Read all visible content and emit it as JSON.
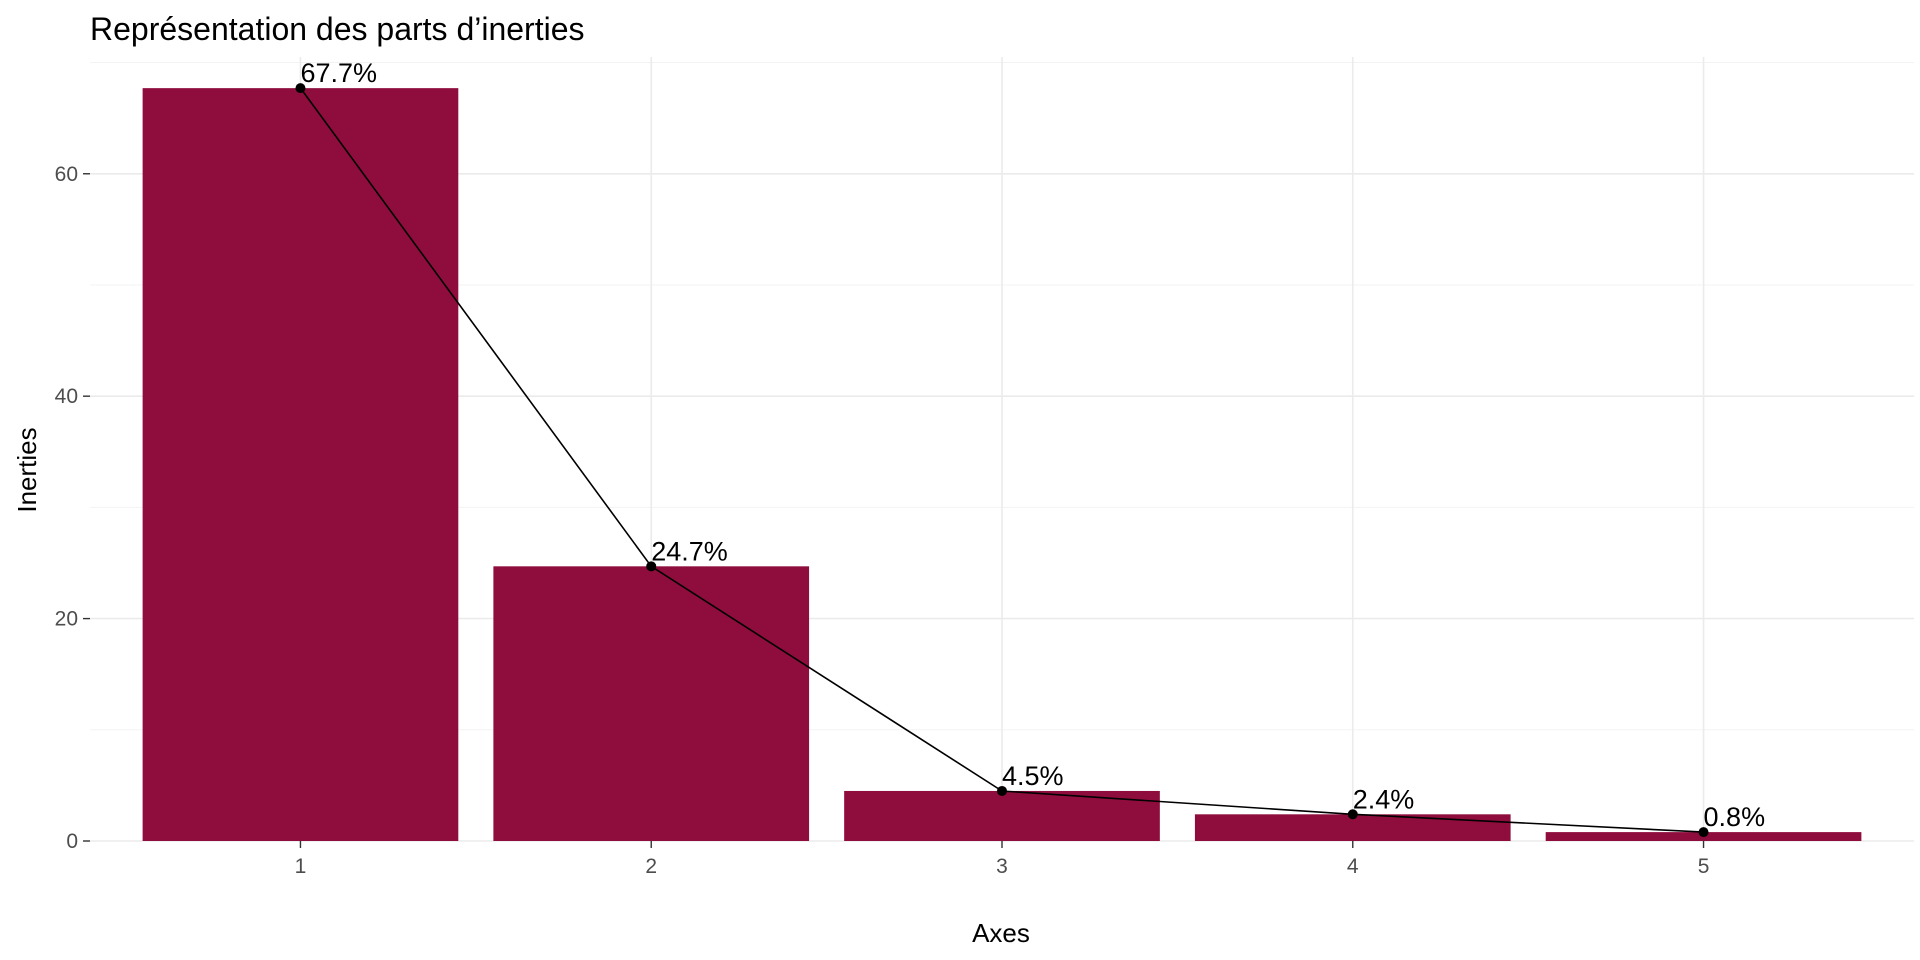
{
  "chart_data": {
    "type": "bar",
    "title": "Représentation des parts d’inerties",
    "xlabel": "Axes",
    "ylabel": "Inerties",
    "categories": [
      "1",
      "2",
      "3",
      "4",
      "5"
    ],
    "values": [
      67.7,
      24.7,
      4.5,
      2.4,
      0.8
    ],
    "data_labels": [
      "67.7%",
      "24.7%",
      "4.5%",
      "2.4%",
      "0.8%"
    ],
    "overlay": "line-with-points",
    "y_ticks": [
      0,
      20,
      40,
      60
    ],
    "y_tick_labels": [
      "0",
      "20",
      "40",
      "60"
    ],
    "ylim": [
      0,
      70.5
    ],
    "grid": true,
    "bar_color": "#8e0d3c",
    "line_color": "#000000"
  }
}
